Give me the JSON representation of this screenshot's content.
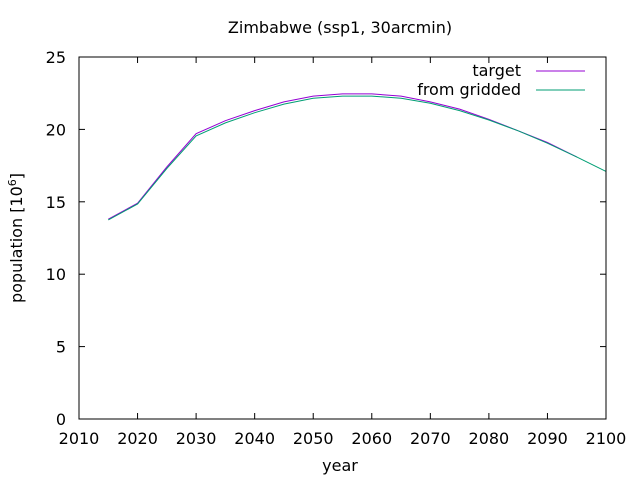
{
  "chart_data": {
    "type": "line",
    "title": "Zimbabwe (ssp1, 30arcmin)",
    "xlabel": "year",
    "ylabel_main": "population [10",
    "ylabel_sup": "6",
    "ylabel_close": "]",
    "xlim": [
      2010,
      2100
    ],
    "ylim": [
      0,
      25
    ],
    "xticks": [
      2010,
      2020,
      2030,
      2040,
      2050,
      2060,
      2070,
      2080,
      2090,
      2100
    ],
    "yticks": [
      0,
      5,
      10,
      15,
      20,
      25
    ],
    "legend_position": "top-right",
    "grid": false,
    "series": [
      {
        "name": "target",
        "color": "#9400d3",
        "x": [
          2015,
          2020,
          2025,
          2030,
          2035,
          2040,
          2045,
          2050,
          2055,
          2060,
          2065,
          2070,
          2075,
          2080,
          2085,
          2090,
          2095
        ],
        "y": [
          13.8,
          14.9,
          17.4,
          19.7,
          20.6,
          21.3,
          21.9,
          22.3,
          22.45,
          22.45,
          22.3,
          21.9,
          21.4,
          20.7,
          19.9,
          19.1,
          18.1
        ]
      },
      {
        "name": "from gridded",
        "color": "#009e73",
        "x": [
          2015,
          2020,
          2025,
          2030,
          2035,
          2040,
          2045,
          2050,
          2055,
          2060,
          2065,
          2070,
          2075,
          2080,
          2085,
          2090,
          2095,
          2100
        ],
        "y": [
          13.75,
          14.85,
          17.3,
          19.55,
          20.45,
          21.15,
          21.75,
          22.15,
          22.3,
          22.3,
          22.15,
          21.8,
          21.3,
          20.65,
          19.9,
          19.05,
          18.1,
          17.1
        ]
      }
    ]
  }
}
